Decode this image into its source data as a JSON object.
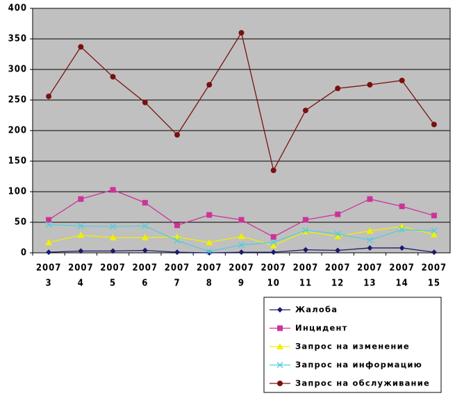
{
  "chart_data": {
    "type": "line",
    "categories": [
      [
        "2007",
        "3"
      ],
      [
        "2007",
        "4"
      ],
      [
        "2007",
        "5"
      ],
      [
        "2007",
        "6"
      ],
      [
        "2007",
        "7"
      ],
      [
        "2007",
        "8"
      ],
      [
        "2007",
        "9"
      ],
      [
        "2007",
        "10"
      ],
      [
        "2007",
        "11"
      ],
      [
        "2007",
        "12"
      ],
      [
        "2007",
        "13"
      ],
      [
        "2007",
        "14"
      ],
      [
        "2007",
        "15"
      ]
    ],
    "series": [
      {
        "name": "Жалоба",
        "color": "#1a1a6e",
        "marker": "diamond",
        "values": [
          1,
          3,
          3,
          4,
          1,
          0,
          1,
          1,
          5,
          4,
          8,
          8,
          1
        ]
      },
      {
        "name": "Инцидент",
        "color": "#cc3399",
        "marker": "square",
        "values": [
          54,
          88,
          103,
          82,
          45,
          62,
          54,
          26,
          54,
          63,
          88,
          76,
          61
        ]
      },
      {
        "name": "Запрос на изменение",
        "color": "#f0f000",
        "marker": "triangle",
        "values": [
          17,
          29,
          25,
          25,
          26,
          17,
          27,
          12,
          35,
          27,
          36,
          43,
          30
        ]
      },
      {
        "name": "Запрос на информацию",
        "color": "#55ccdd",
        "marker": "cross",
        "values": [
          46,
          44,
          43,
          44,
          20,
          2,
          13,
          17,
          37,
          31,
          21,
          38,
          36
        ]
      },
      {
        "name": "Запрос на обслуживание",
        "color": "#7a1010",
        "marker": "circle",
        "values": [
          256,
          337,
          288,
          246,
          193,
          275,
          360,
          135,
          233,
          269,
          275,
          282,
          210
        ]
      }
    ],
    "ylim": [
      0,
      400
    ],
    "yticks": [
      0,
      50,
      100,
      150,
      200,
      250,
      300,
      350,
      400
    ],
    "grid": true
  }
}
